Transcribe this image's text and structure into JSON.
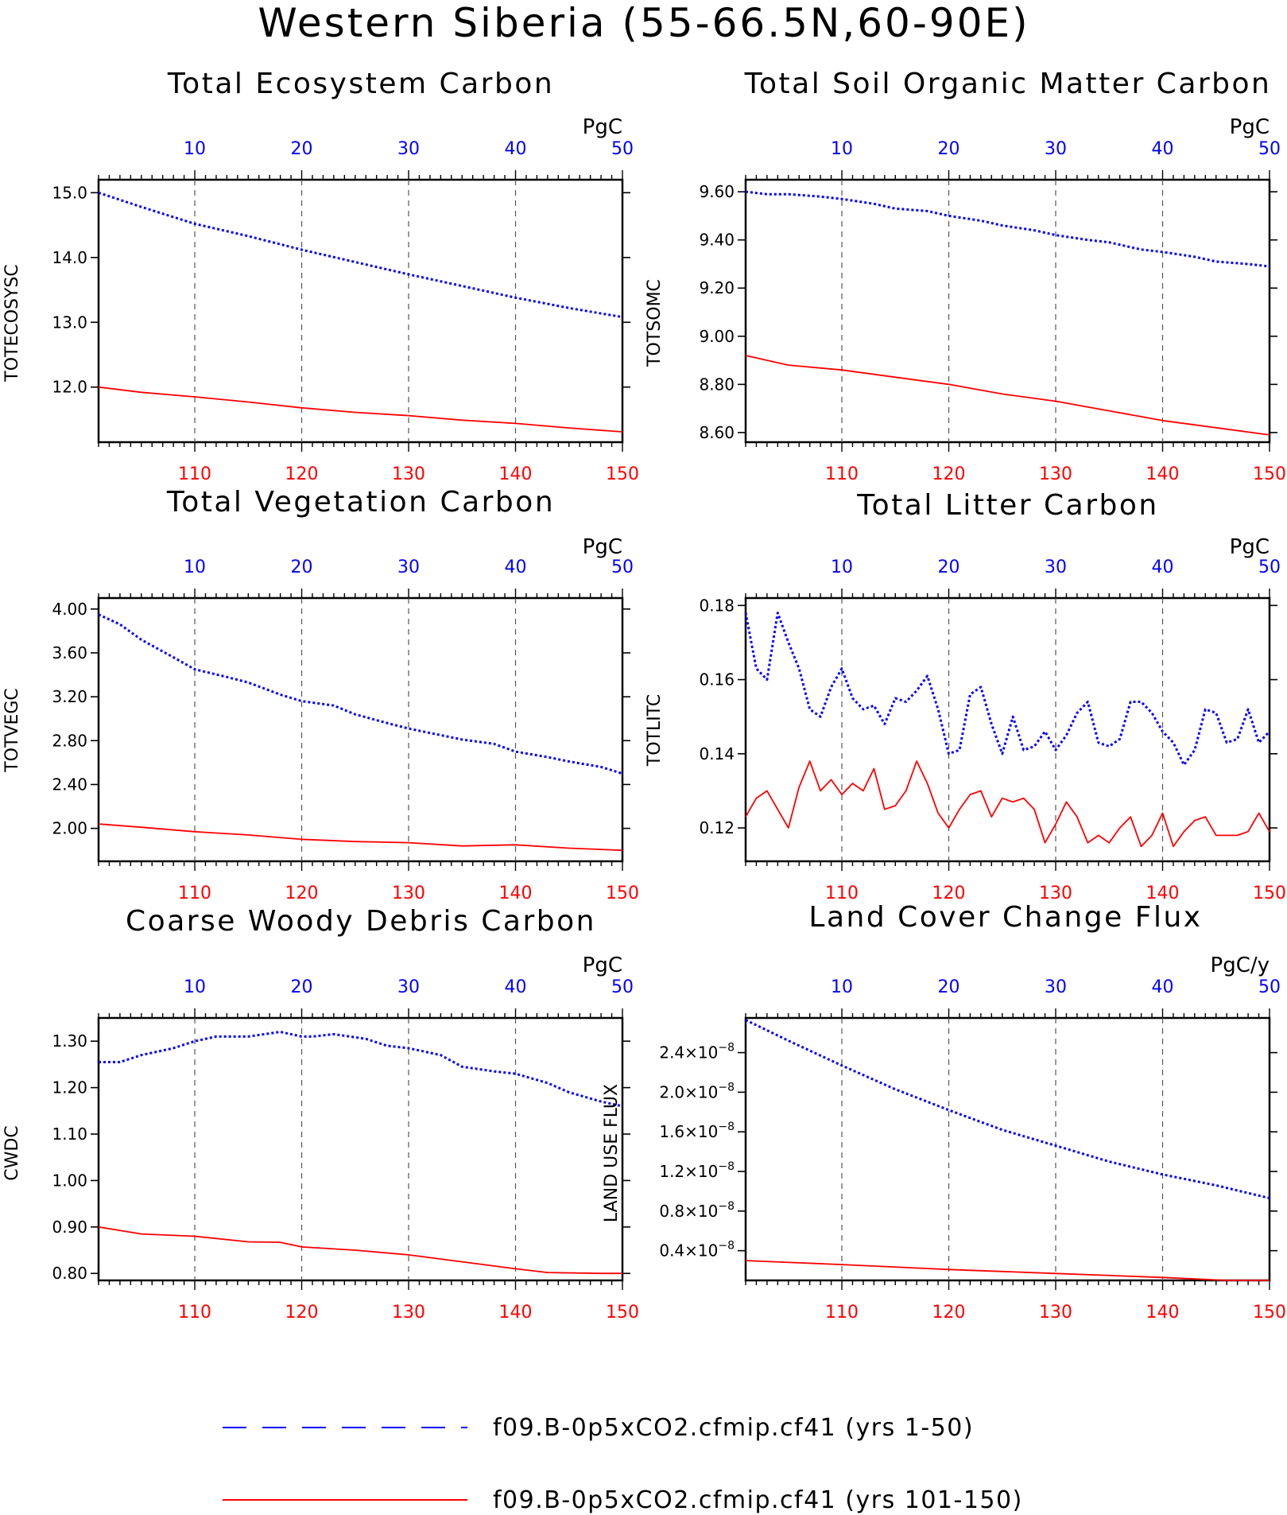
{
  "main_title": "Western Siberia (55-66.5N,60-90E)",
  "colors": {
    "series_a": "#0000ff",
    "series_b": "#ff0000",
    "top_ticks": "#0000ff",
    "bottom_ticks": "#ff0000",
    "grid": "#555555"
  },
  "legend": [
    {
      "label": "f09.B-0p5xCO2.cfmip.cf41 (yrs 1-50)",
      "style": "dashed",
      "color": "#0000ff"
    },
    {
      "label": "f09.B-0p5xCO2.cfmip.cf41 (yrs 101-150)",
      "style": "solid",
      "color": "#ff0000"
    }
  ],
  "chart_data": [
    {
      "type": "line",
      "title": "Total Ecosystem Carbon",
      "units": "PgC",
      "ylabel": "TOTECOSYSC",
      "top_x_range": [
        1,
        50
      ],
      "top_ticks": [
        "10",
        "20",
        "30",
        "40",
        "50"
      ],
      "bottom_x_range": [
        101,
        150
      ],
      "bottom_ticks": [
        "110",
        "120",
        "130",
        "140",
        "150"
      ],
      "ylim": [
        11.15,
        15.2
      ],
      "yticks": [
        {
          "v": 12.0,
          "label": "12.0"
        },
        {
          "v": 13.0,
          "label": "13.0"
        },
        {
          "v": 14.0,
          "label": "14.0"
        },
        {
          "v": 15.0,
          "label": "15.0"
        }
      ],
      "series": [
        {
          "style": "dashed",
          "color": "#0000ff",
          "x": [
            1,
            5,
            10,
            15,
            20,
            25,
            30,
            35,
            40,
            45,
            50
          ],
          "values": [
            15.0,
            14.78,
            14.52,
            14.33,
            14.12,
            13.93,
            13.74,
            13.56,
            13.38,
            13.22,
            13.08
          ]
        },
        {
          "style": "solid",
          "color": "#ff0000",
          "x": [
            101,
            105,
            110,
            115,
            120,
            125,
            130,
            135,
            140,
            145,
            150
          ],
          "values": [
            12.0,
            11.92,
            11.85,
            11.77,
            11.68,
            11.61,
            11.56,
            11.49,
            11.44,
            11.37,
            11.31
          ]
        }
      ]
    },
    {
      "type": "line",
      "title": "Total Soil Organic Matter Carbon",
      "units": "PgC",
      "ylabel": "TOTSOMC",
      "top_x_range": [
        1,
        50
      ],
      "top_ticks": [
        "10",
        "20",
        "30",
        "40",
        "50"
      ],
      "bottom_x_range": [
        101,
        150
      ],
      "bottom_ticks": [
        "110",
        "120",
        "130",
        "140",
        "150"
      ],
      "ylim": [
        8.56,
        9.65
      ],
      "yticks": [
        {
          "v": 8.6,
          "label": "8.60"
        },
        {
          "v": 8.8,
          "label": "8.80"
        },
        {
          "v": 9.0,
          "label": "9.00"
        },
        {
          "v": 9.2,
          "label": "9.20"
        },
        {
          "v": 9.4,
          "label": "9.40"
        },
        {
          "v": 9.6,
          "label": "9.60"
        }
      ],
      "series": [
        {
          "style": "dashed",
          "color": "#0000ff",
          "x": [
            1,
            3,
            5,
            8,
            10,
            13,
            15,
            18,
            20,
            23,
            25,
            28,
            30,
            33,
            35,
            38,
            40,
            43,
            45,
            48,
            50
          ],
          "values": [
            9.6,
            9.59,
            9.59,
            9.58,
            9.57,
            9.55,
            9.53,
            9.52,
            9.5,
            9.48,
            9.46,
            9.44,
            9.42,
            9.4,
            9.39,
            9.36,
            9.35,
            9.33,
            9.31,
            9.3,
            9.29
          ]
        },
        {
          "style": "solid",
          "color": "#ff0000",
          "x": [
            101,
            105,
            110,
            115,
            120,
            125,
            130,
            135,
            140,
            145,
            150
          ],
          "values": [
            8.92,
            8.88,
            8.86,
            8.83,
            8.8,
            8.76,
            8.73,
            8.69,
            8.65,
            8.62,
            8.59
          ]
        }
      ]
    },
    {
      "type": "line",
      "title": "Total Vegetation Carbon",
      "units": "PgC",
      "ylabel": "TOTVEGC",
      "top_x_range": [
        1,
        50
      ],
      "top_ticks": [
        "10",
        "20",
        "30",
        "40",
        "50"
      ],
      "bottom_x_range": [
        101,
        150
      ],
      "bottom_ticks": [
        "110",
        "120",
        "130",
        "140",
        "150"
      ],
      "ylim": [
        1.7,
        4.1
      ],
      "yticks": [
        {
          "v": 2.0,
          "label": "2.00"
        },
        {
          "v": 2.4,
          "label": "2.40"
        },
        {
          "v": 2.8,
          "label": "2.80"
        },
        {
          "v": 3.2,
          "label": "3.20"
        },
        {
          "v": 3.6,
          "label": "3.60"
        },
        {
          "v": 4.0,
          "label": "4.00"
        }
      ],
      "series": [
        {
          "style": "dashed",
          "color": "#0000ff",
          "x": [
            1,
            3,
            5,
            8,
            10,
            13,
            15,
            18,
            20,
            23,
            25,
            28,
            30,
            33,
            35,
            38,
            40,
            43,
            45,
            48,
            50
          ],
          "values": [
            3.95,
            3.86,
            3.72,
            3.56,
            3.45,
            3.38,
            3.33,
            3.22,
            3.16,
            3.12,
            3.04,
            2.96,
            2.91,
            2.85,
            2.81,
            2.77,
            2.7,
            2.65,
            2.61,
            2.56,
            2.5
          ]
        },
        {
          "style": "solid",
          "color": "#ff0000",
          "x": [
            101,
            105,
            110,
            115,
            120,
            125,
            130,
            135,
            140,
            145,
            150
          ],
          "values": [
            2.04,
            2.01,
            1.97,
            1.94,
            1.9,
            1.88,
            1.87,
            1.84,
            1.85,
            1.82,
            1.8
          ]
        }
      ]
    },
    {
      "type": "line",
      "title": "Total Litter Carbon",
      "units": "PgC",
      "ylabel": "TOTLITC",
      "top_x_range": [
        1,
        50
      ],
      "top_ticks": [
        "10",
        "20",
        "30",
        "40",
        "50"
      ],
      "bottom_x_range": [
        101,
        150
      ],
      "bottom_ticks": [
        "110",
        "120",
        "130",
        "140",
        "150"
      ],
      "ylim": [
        0.111,
        0.182
      ],
      "yticks": [
        {
          "v": 0.12,
          "label": "0.12"
        },
        {
          "v": 0.14,
          "label": "0.14"
        },
        {
          "v": 0.16,
          "label": "0.16"
        },
        {
          "v": 0.18,
          "label": "0.18"
        }
      ],
      "series": [
        {
          "style": "dashed",
          "color": "#0000ff",
          "x": [
            1,
            2,
            3,
            4,
            5,
            6,
            7,
            8,
            9,
            10,
            11,
            12,
            13,
            14,
            15,
            16,
            17,
            18,
            19,
            20,
            21,
            22,
            23,
            24,
            25,
            26,
            27,
            28,
            29,
            30,
            31,
            32,
            33,
            34,
            35,
            36,
            37,
            38,
            39,
            40,
            41,
            42,
            43,
            44,
            45,
            46,
            47,
            48,
            49,
            50
          ],
          "values": [
            0.178,
            0.163,
            0.16,
            0.178,
            0.17,
            0.163,
            0.152,
            0.15,
            0.158,
            0.163,
            0.155,
            0.152,
            0.153,
            0.148,
            0.155,
            0.154,
            0.157,
            0.161,
            0.152,
            0.14,
            0.141,
            0.156,
            0.158,
            0.148,
            0.14,
            0.15,
            0.141,
            0.142,
            0.146,
            0.141,
            0.145,
            0.151,
            0.154,
            0.143,
            0.142,
            0.144,
            0.154,
            0.154,
            0.151,
            0.146,
            0.143,
            0.137,
            0.141,
            0.152,
            0.151,
            0.143,
            0.144,
            0.152,
            0.143,
            0.146
          ]
        },
        {
          "style": "solid",
          "color": "#ff0000",
          "x": [
            101,
            102,
            103,
            104,
            105,
            106,
            107,
            108,
            109,
            110,
            111,
            112,
            113,
            114,
            115,
            116,
            117,
            118,
            119,
            120,
            121,
            122,
            123,
            124,
            125,
            126,
            127,
            128,
            129,
            130,
            131,
            132,
            133,
            134,
            135,
            136,
            137,
            138,
            139,
            140,
            141,
            142,
            143,
            144,
            145,
            146,
            147,
            148,
            149,
            150
          ],
          "values": [
            0.123,
            0.128,
            0.13,
            0.125,
            0.12,
            0.131,
            0.138,
            0.13,
            0.133,
            0.129,
            0.132,
            0.13,
            0.136,
            0.125,
            0.126,
            0.13,
            0.138,
            0.132,
            0.124,
            0.12,
            0.125,
            0.129,
            0.13,
            0.123,
            0.128,
            0.127,
            0.128,
            0.125,
            0.116,
            0.121,
            0.127,
            0.123,
            0.116,
            0.118,
            0.116,
            0.12,
            0.123,
            0.115,
            0.118,
            0.124,
            0.115,
            0.119,
            0.122,
            0.123,
            0.118,
            0.118,
            0.118,
            0.119,
            0.124,
            0.119
          ]
        }
      ]
    },
    {
      "type": "line",
      "title": "Coarse Woody Debris Carbon",
      "units": "PgC",
      "ylabel": "CWDC",
      "top_x_range": [
        1,
        50
      ],
      "top_ticks": [
        "10",
        "20",
        "30",
        "40",
        "50"
      ],
      "bottom_x_range": [
        101,
        150
      ],
      "bottom_ticks": [
        "110",
        "120",
        "130",
        "140",
        "150"
      ],
      "ylim": [
        0.785,
        1.35
      ],
      "yticks": [
        {
          "v": 0.8,
          "label": "0.80"
        },
        {
          "v": 0.9,
          "label": "0.90"
        },
        {
          "v": 1.0,
          "label": "1.00"
        },
        {
          "v": 1.1,
          "label": "1.10"
        },
        {
          "v": 1.2,
          "label": "1.20"
        },
        {
          "v": 1.3,
          "label": "1.30"
        }
      ],
      "series": [
        {
          "style": "dashed",
          "color": "#0000ff",
          "x": [
            1,
            3,
            5,
            8,
            10,
            12,
            15,
            18,
            20,
            21,
            23,
            26,
            28,
            30,
            33,
            35,
            38,
            40,
            43,
            45,
            48,
            50
          ],
          "values": [
            1.255,
            1.255,
            1.27,
            1.285,
            1.3,
            1.31,
            1.31,
            1.32,
            1.31,
            1.31,
            1.315,
            1.305,
            1.29,
            1.285,
            1.27,
            1.245,
            1.235,
            1.23,
            1.21,
            1.19,
            1.17,
            1.16
          ]
        },
        {
          "style": "solid",
          "color": "#ff0000",
          "x": [
            101,
            105,
            110,
            115,
            118,
            120,
            125,
            130,
            135,
            140,
            143,
            148,
            150
          ],
          "values": [
            0.9,
            0.885,
            0.88,
            0.868,
            0.867,
            0.857,
            0.85,
            0.84,
            0.825,
            0.81,
            0.802,
            0.8,
            0.8
          ]
        }
      ]
    },
    {
      "type": "line",
      "title": "Land Cover Change Flux",
      "units": "PgC/y",
      "ylabel": "LAND USE FLUX",
      "top_x_range": [
        1,
        50
      ],
      "top_ticks": [
        "10",
        "20",
        "30",
        "40",
        "50"
      ],
      "bottom_x_range": [
        101,
        150
      ],
      "bottom_ticks": [
        "110",
        "120",
        "130",
        "140",
        "150"
      ],
      "ylim": [
        0.1,
        2.75
      ],
      "yticks_multiplier": "x10^-8",
      "yticks": [
        {
          "v": 0.4,
          "label": "0.4"
        },
        {
          "v": 0.8,
          "label": "0.8"
        },
        {
          "v": 1.2,
          "label": "1.2"
        },
        {
          "v": 1.6,
          "label": "1.6"
        },
        {
          "v": 2.0,
          "label": "2.0"
        },
        {
          "v": 2.4,
          "label": "2.4"
        }
      ],
      "series": [
        {
          "style": "dashed",
          "color": "#0000ff",
          "x": [
            1,
            5,
            10,
            15,
            20,
            25,
            30,
            35,
            40,
            45,
            50
          ],
          "values": [
            2.73,
            2.52,
            2.27,
            2.03,
            1.82,
            1.62,
            1.46,
            1.3,
            1.17,
            1.06,
            0.93
          ]
        },
        {
          "style": "solid",
          "color": "#ff0000",
          "x": [
            101,
            110,
            120,
            130,
            140,
            146,
            150
          ],
          "values": [
            0.3,
            0.26,
            0.21,
            0.17,
            0.13,
            0.1,
            0.1
          ]
        }
      ]
    }
  ]
}
